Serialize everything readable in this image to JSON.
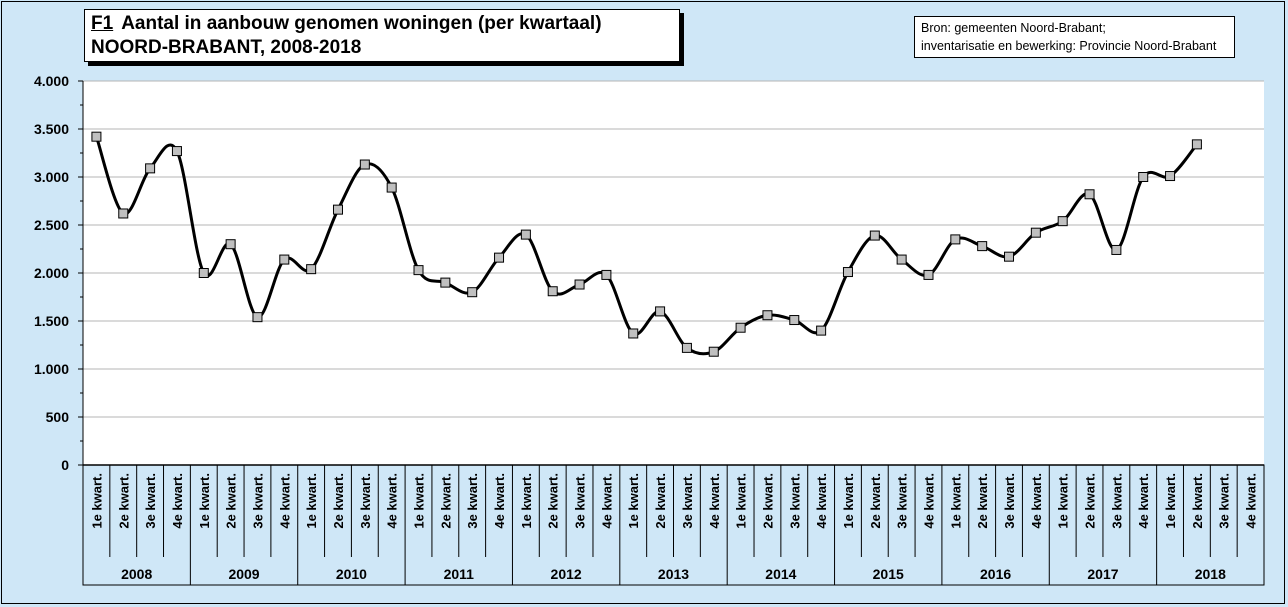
{
  "header": {
    "figure_code": "F1",
    "title_line1": "Aantal in aanbouw genomen woningen (per kwartaal)",
    "title_line2": "NOORD-BRABANT, 2008-2018"
  },
  "source": {
    "line1": "Bron: gemeenten Noord-Brabant;",
    "line2": "inventarisatie en bewerking: Provincie Noord-Brabant"
  },
  "chart_data": {
    "type": "line",
    "title": "Aantal in aanbouw genomen woningen (per kwartaal)",
    "subtitle": "NOORD-BRABANT, 2008-2018",
    "years": [
      "2008",
      "2009",
      "2010",
      "2011",
      "2012",
      "2013",
      "2014",
      "2015",
      "2016",
      "2017",
      "2018"
    ],
    "quarters": [
      "1e kwart.",
      "2e kwart.",
      "3e kwart.",
      "4e kwart."
    ],
    "ylim": [
      0,
      4000
    ],
    "yticks": [
      0,
      500,
      1000,
      1500,
      2000,
      2500,
      3000,
      3500,
      4000
    ],
    "ytick_labels": [
      "0",
      "500",
      "1.000",
      "1.500",
      "2.000",
      "2.500",
      "3.000",
      "3.500",
      "4.000"
    ],
    "grid": true,
    "values": [
      3420,
      2620,
      3090,
      3270,
      2000,
      2300,
      1540,
      2140,
      2040,
      2660,
      3130,
      2890,
      2030,
      1900,
      1800,
      2160,
      2400,
      1810,
      1880,
      1980,
      1370,
      1600,
      1220,
      1180,
      1430,
      1560,
      1510,
      1400,
      2010,
      2390,
      2140,
      1980,
      2350,
      2280,
      2170,
      2420,
      2540,
      2820,
      2240,
      3000,
      3010,
      3340
    ]
  }
}
